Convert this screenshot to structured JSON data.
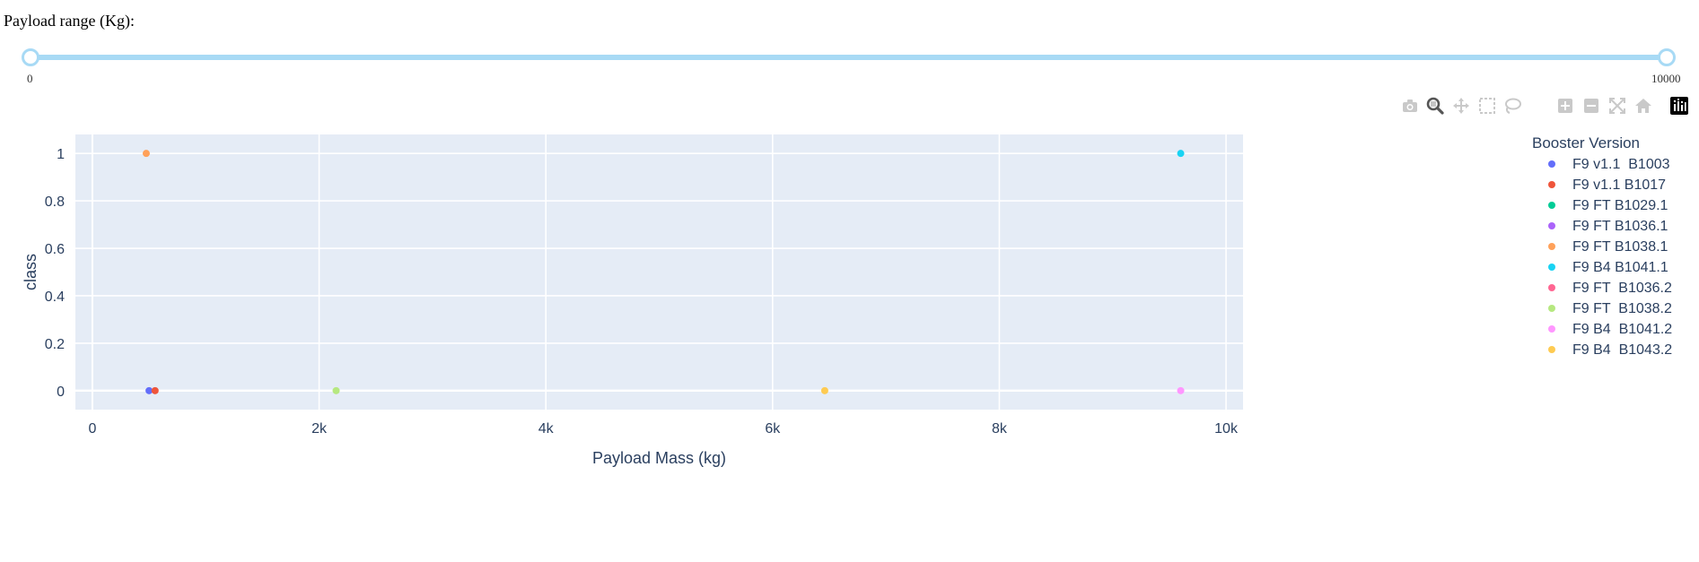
{
  "slider": {
    "label": "Payload range (Kg):",
    "min": 0,
    "max": 10000,
    "value": [
      0,
      10000
    ],
    "min_label": "0",
    "max_label": "10000",
    "color": "#a8daf5"
  },
  "modebar": {
    "buttons": [
      {
        "name": "camera-icon",
        "title": "Download plot as a png"
      },
      {
        "name": "zoom-icon",
        "title": "Zoom",
        "active": true
      },
      {
        "name": "pan-icon",
        "title": "Pan"
      },
      {
        "name": "box-select-icon",
        "title": "Box Select"
      },
      {
        "name": "lasso-select-icon",
        "title": "Lasso Select"
      },
      {
        "name": "zoom-in-icon",
        "title": "Zoom in"
      },
      {
        "name": "zoom-out-icon",
        "title": "Zoom out"
      },
      {
        "name": "autoscale-icon",
        "title": "Autoscale"
      },
      {
        "name": "reset-axes-icon",
        "title": "Reset axes"
      },
      {
        "name": "plotly-logo-icon",
        "title": "Produced with Plotly"
      }
    ]
  },
  "chart_data": {
    "type": "scatter",
    "title": "",
    "xlabel": "Payload Mass (kg)",
    "ylabel": "class",
    "xlim": [
      -150,
      10150
    ],
    "ylim": [
      -0.08,
      1.08
    ],
    "x_ticks": [
      0,
      2000,
      4000,
      6000,
      8000,
      10000
    ],
    "x_tick_labels": [
      "0",
      "2k",
      "4k",
      "6k",
      "8k",
      "10k"
    ],
    "y_ticks": [
      0,
      0.2,
      0.4,
      0.6,
      0.8,
      1
    ],
    "y_tick_labels": [
      "0",
      "0.2",
      "0.4",
      "0.6",
      "0.8",
      "1"
    ],
    "grid": true,
    "legend_title": "Booster Version",
    "legend_position": "right",
    "plot_bgcolor": "#e5ecf6",
    "series": [
      {
        "name": "F9 v1.1  B1003",
        "color": "#636efa",
        "points": [
          {
            "x": 500,
            "y": 0
          }
        ]
      },
      {
        "name": "F9 v1.1 B1017",
        "color": "#ef553b",
        "points": [
          {
            "x": 553,
            "y": 0
          }
        ]
      },
      {
        "name": "F9 FT B1029.1",
        "color": "#00cc96",
        "points": []
      },
      {
        "name": "F9 FT B1036.1",
        "color": "#ab63fa",
        "points": []
      },
      {
        "name": "F9 FT B1038.1",
        "color": "#ffa15a",
        "points": [
          {
            "x": 475,
            "y": 1
          }
        ]
      },
      {
        "name": "F9 B4 B1041.1",
        "color": "#19d3f3",
        "points": [
          {
            "x": 9600,
            "y": 1
          }
        ]
      },
      {
        "name": "F9 FT  B1036.2",
        "color": "#ff6692",
        "points": []
      },
      {
        "name": "F9 FT  B1038.2",
        "color": "#b6e880",
        "points": [
          {
            "x": 2150,
            "y": 0
          }
        ]
      },
      {
        "name": "F9 B4  B1041.2",
        "color": "#ff97ff",
        "points": [
          {
            "x": 9600,
            "y": 0
          }
        ]
      },
      {
        "name": "F9 B4  B1043.2",
        "color": "#fecb52",
        "points": [
          {
            "x": 6460,
            "y": 0
          }
        ]
      }
    ]
  }
}
